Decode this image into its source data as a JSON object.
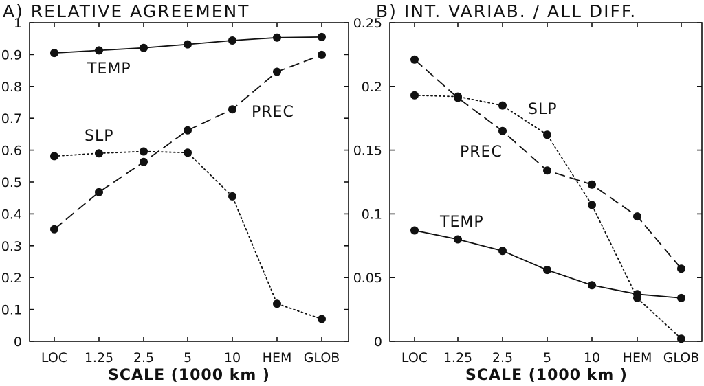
{
  "chart_data": [
    {
      "type": "line",
      "title": "A) RELATIVE AGREEMENT",
      "xlabel": "SCALE (1000 km )",
      "ylabel": "",
      "categories": [
        "LOC",
        "1.25",
        "2.5",
        "5",
        "10",
        "HEM",
        "GLOB"
      ],
      "ylim": [
        0,
        1
      ],
      "yticks": [
        "0",
        "0.1",
        "0.2",
        "0.3",
        "0.4",
        "0.5",
        "0.6",
        "0.7",
        "0.8",
        "0.9",
        "1"
      ],
      "grid": false,
      "series": [
        {
          "name": "TEMP",
          "style": "solid",
          "values": [
            0.905,
            0.913,
            0.921,
            0.932,
            0.944,
            0.953,
            0.955
          ]
        },
        {
          "name": "PREC",
          "style": "dashed",
          "values": [
            0.352,
            0.468,
            0.563,
            0.662,
            0.728,
            0.846,
            0.899
          ]
        },
        {
          "name": "SLP",
          "style": "dotted",
          "values": [
            0.581,
            0.59,
            0.596,
            0.592,
            0.455,
            0.118,
            0.07
          ]
        }
      ]
    },
    {
      "type": "line",
      "title": "B) INT. VARIAB. / ALL DIFF.",
      "xlabel": "SCALE (1000 km )",
      "ylabel": "",
      "categories": [
        "LOC",
        "1.25",
        "2.5",
        "5",
        "10",
        "HEM",
        "GLOB"
      ],
      "ylim": [
        0,
        0.25
      ],
      "yticks": [
        "0",
        "0.05",
        "0.1",
        "0.15",
        "0.2",
        "0.25"
      ],
      "grid": false,
      "series": [
        {
          "name": "TEMP",
          "style": "solid",
          "values": [
            0.087,
            0.08,
            0.071,
            0.056,
            0.044,
            0.037,
            0.034
          ]
        },
        {
          "name": "PREC",
          "style": "dashed",
          "values": [
            0.221,
            0.191,
            0.165,
            0.134,
            0.123,
            0.098,
            0.057
          ]
        },
        {
          "name": "SLP",
          "style": "dotted",
          "values": [
            0.193,
            0.192,
            0.185,
            0.162,
            0.107,
            0.034,
            0.002
          ]
        }
      ]
    }
  ]
}
